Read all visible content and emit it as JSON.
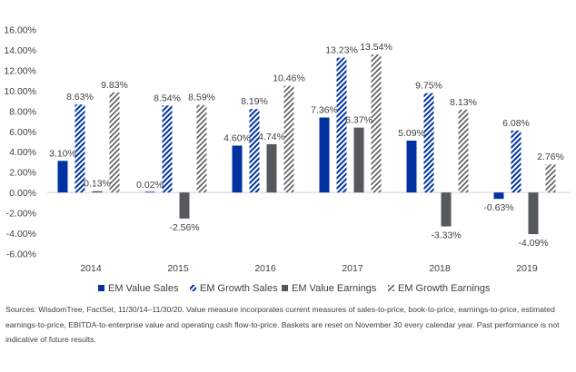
{
  "chart_data": {
    "type": "bar",
    "title": "",
    "xlabel": "",
    "ylabel": "",
    "categories": [
      "2014",
      "2015",
      "2016",
      "2017",
      "2018",
      "2019"
    ],
    "ylim": [
      -6,
      16
    ],
    "yticks": [
      -6,
      -4,
      -2,
      0,
      2,
      4,
      6,
      8,
      10,
      12,
      14,
      16
    ],
    "ytick_labels": [
      "-6.00%",
      "-4.00%",
      "-2.00%",
      "0.00%",
      "2.00%",
      "4.00%",
      "6.00%",
      "8.00%",
      "10.00%",
      "12.00%",
      "14.00%",
      "16.00%"
    ],
    "grid": false,
    "legend_position": "bottom",
    "series": [
      {
        "name": "EM Value Sales",
        "color": "#0033A0",
        "pattern": "solid",
        "values": [
          3.1,
          0.02,
          4.6,
          7.36,
          5.09,
          -0.63
        ],
        "labels": [
          "3.10%",
          "0.02%",
          "4.60%",
          "7.36%",
          "5.09%",
          "-0.63%"
        ]
      },
      {
        "name": "EM Growth Sales",
        "color": "#0033A0",
        "pattern": "hatch",
        "values": [
          8.63,
          8.54,
          8.19,
          13.23,
          9.75,
          6.08
        ],
        "labels": [
          "8.63%",
          "8.54%",
          "8.19%",
          "13.23%",
          "9.75%",
          "6.08%"
        ]
      },
      {
        "name": "EM Value Earnings",
        "color": "#55595C",
        "pattern": "solid",
        "values": [
          0.13,
          -2.56,
          4.74,
          6.37,
          -3.33,
          -4.09
        ],
        "labels": [
          "0.13%",
          "-2.56%",
          "4.74%",
          "6.37%",
          "-3.33%",
          "-4.09%"
        ]
      },
      {
        "name": "EM Growth Earnings",
        "color": "#55595C",
        "pattern": "hatch",
        "values": [
          9.83,
          8.59,
          10.46,
          13.54,
          8.13,
          2.76
        ],
        "labels": [
          "9.83%",
          "8.59%",
          "10.46%",
          "13.54%",
          "8.13%",
          "2.76%"
        ]
      }
    ]
  },
  "source_note": "Sources: WisdomTree, FactSet, 11/30/14–11/30/20. Value measure incorporates current measures of sales-to-price, book-to-price, earnings-to-price, estimated earnings-to-price, EBITDA-to-enterprise value and operating cash flow-to-price. Baskets are reset on November 30 every calendar year. Past performance is not indicative of future results."
}
